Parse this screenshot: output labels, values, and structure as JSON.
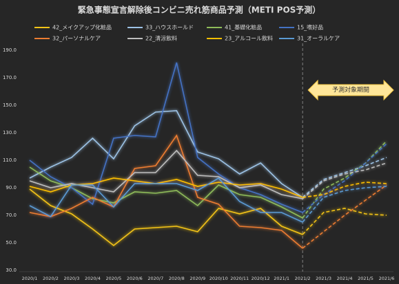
{
  "chart_data": {
    "type": "line",
    "title": "緊急事態宣言解除後コンビニ売れ筋商品予測（METI POS予測）",
    "categories": [
      "2020/1",
      "2020/2",
      "2020/3",
      "2020/4",
      "2020/5",
      "2020/6",
      "2020/7",
      "2020/8",
      "2020/9",
      "2020/10",
      "2020/11",
      "2020/12",
      "2021/1",
      "2021/2",
      "2021/3",
      "2021/4",
      "2021/5",
      "2021/6"
    ],
    "forecast_start": "2021/2",
    "annotation": "予測対象期間",
    "ylim": [
      30,
      190
    ],
    "yticks": [
      {
        "value": 30,
        "label": "30.0"
      },
      {
        "value": 50,
        "label": "50.0"
      },
      {
        "value": 70,
        "label": "70.0"
      },
      {
        "value": 90,
        "label": "90.0"
      },
      {
        "value": 110,
        "label": "110.0"
      },
      {
        "value": 130,
        "label": "130.0"
      },
      {
        "value": 150,
        "label": "150.0"
      },
      {
        "value": 170,
        "label": "170.0"
      },
      {
        "value": 190,
        "label": "190.0"
      }
    ],
    "grid": false,
    "series": [
      {
        "name": "42_メイクアップ化粧品",
        "color": "#f5c518",
        "values": [
          89,
          77,
          71,
          60,
          48,
          60,
          61,
          62,
          58,
          75,
          71,
          75,
          62,
          56,
          72,
          75,
          71,
          70
        ]
      },
      {
        "name": "33_ハウスホールド",
        "color": "#9dc3e6",
        "values": [
          97,
          105,
          112,
          126,
          111,
          135,
          145,
          146,
          116,
          111,
          100,
          108,
          93,
          83,
          96,
          101,
          106,
          112
        ]
      },
      {
        "name": "41_基礎化粧品",
        "color": "#8fbc5a",
        "values": [
          105,
          95,
          90,
          82,
          79,
          87,
          86,
          88,
          77,
          92,
          85,
          83,
          76,
          68,
          89,
          97,
          108,
          124
        ]
      },
      {
        "name": "15_嗜好品",
        "color": "#4472c4",
        "values": [
          110,
          98,
          90,
          78,
          126,
          128,
          127,
          181,
          112,
          100,
          90,
          85,
          78,
          72,
          85,
          95,
          108,
          122
        ]
      },
      {
        "name": "32_パーソナルケア",
        "color": "#ed7d31",
        "values": [
          72,
          69,
          75,
          83,
          76,
          104,
          106,
          128,
          83,
          78,
          62,
          61,
          59,
          46,
          58,
          70,
          81,
          92
        ]
      },
      {
        "name": "22_清涼飲料",
        "color": "#bfbfbf",
        "values": [
          95,
          90,
          93,
          90,
          87,
          101,
          101,
          117,
          99,
          98,
          90,
          92,
          85,
          82,
          95,
          100,
          103,
          108
        ]
      },
      {
        "name": "23_アルコール飲料",
        "color": "#ffc000",
        "values": [
          91,
          87,
          92,
          93,
          97,
          95,
          93,
          96,
          91,
          94,
          92,
          93,
          89,
          83,
          85,
          91,
          94,
          93
        ]
      },
      {
        "name": "31_オーラルケア",
        "color": "#5b9bd5",
        "values": [
          77,
          69,
          92,
          92,
          76,
          93,
          93,
          93,
          88,
          97,
          80,
          72,
          72,
          65,
          83,
          88,
          90,
          91
        ]
      }
    ]
  }
}
